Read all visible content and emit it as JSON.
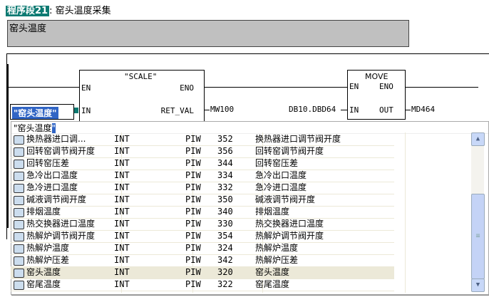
{
  "network": {
    "tag": "程序段21",
    "title": ": 窑头温度采集",
    "comment": "窑头温度"
  },
  "scale": {
    "name": "\"SCALE\"",
    "en": "EN",
    "eno": "ENO",
    "in": "IN",
    "ret_val": "RET_VAL",
    "in_value": "\"窑头温度\"",
    "ret_value": "MW100"
  },
  "move": {
    "name": "MOVE",
    "en": "EN",
    "eno": "ENO",
    "in": "IN",
    "out": "OUT",
    "in_value": "DB10.DBD64",
    "out_value": "MD464"
  },
  "popup": {
    "input": "\"窑头温度",
    "cursor": "\"",
    "rows": [
      {
        "name": "换热器进口调...",
        "type": "INT",
        "area": "PIW",
        "addr": "352",
        "comment": "换热器进口调节阀开度"
      },
      {
        "name": "回转窑调节阀开度",
        "type": "INT",
        "area": "PIW",
        "addr": "356",
        "comment": "回转窑调节阀开度"
      },
      {
        "name": "回转窑压差",
        "type": "INT",
        "area": "PIW",
        "addr": "344",
        "comment": "回转窑压差"
      },
      {
        "name": "急冷出口温度",
        "type": "INT",
        "area": "PIW",
        "addr": "334",
        "comment": "急冷出口温度"
      },
      {
        "name": "急冷进口温度",
        "type": "INT",
        "area": "PIW",
        "addr": "332",
        "comment": "急冷进口温度"
      },
      {
        "name": "碱液调节阀开度",
        "type": "INT",
        "area": "PIW",
        "addr": "350",
        "comment": "碱液调节阀开度"
      },
      {
        "name": "排烟温度",
        "type": "INT",
        "area": "PIW",
        "addr": "340",
        "comment": "排烟温度"
      },
      {
        "name": "热交换器进口温度",
        "type": "INT",
        "area": "PIW",
        "addr": "330",
        "comment": "热交换器进口温度"
      },
      {
        "name": "热解炉调节阀开度",
        "type": "INT",
        "area": "PIW",
        "addr": "354",
        "comment": "热解炉调节阀开度"
      },
      {
        "name": "热解炉温度",
        "type": "INT",
        "area": "PIW",
        "addr": "324",
        "comment": "热解炉温度"
      },
      {
        "name": "热解炉压差",
        "type": "INT",
        "area": "PIW",
        "addr": "342",
        "comment": "热解炉压差"
      },
      {
        "name": "窑头温度",
        "type": "INT",
        "area": "PIW",
        "addr": "320",
        "comment": "窑头温度",
        "selected": true
      },
      {
        "name": "窑尾温度",
        "type": "INT",
        "area": "PIW",
        "addr": "322",
        "comment": "窑尾温度"
      }
    ]
  },
  "icons": {
    "row": "io-symbol-icon",
    "up": "scroll-up-icon",
    "down": "scroll-down-icon"
  },
  "colors": {
    "accent": "#0d7a72",
    "selection": "#3165c5",
    "row_selected": "#ece9d8"
  }
}
